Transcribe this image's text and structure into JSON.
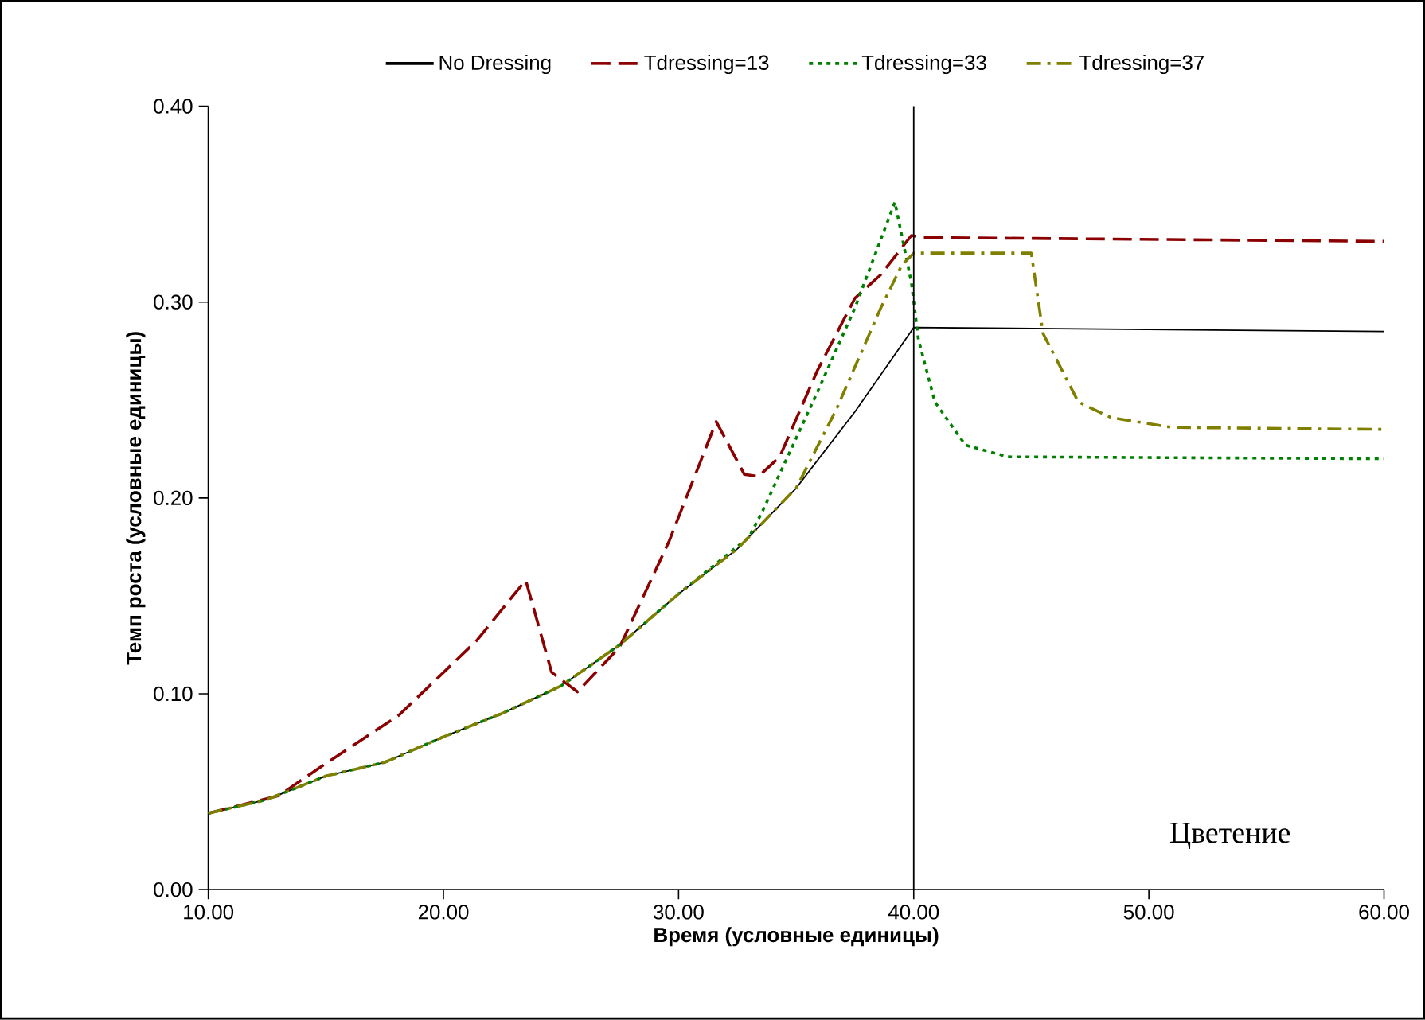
{
  "chart_data": {
    "type": "line",
    "xlabel": "Время (условные единицы)",
    "ylabel": "Темп роста (условные единицы)",
    "xlim": [
      10,
      60
    ],
    "ylim": [
      0,
      0.4
    ],
    "xticks": [
      {
        "value": 10,
        "label": "10.00"
      },
      {
        "value": 20,
        "label": "20.00"
      },
      {
        "value": 30,
        "label": "30.00"
      },
      {
        "value": 40,
        "label": "40.00"
      },
      {
        "value": 50,
        "label": "50.00"
      },
      {
        "value": 60,
        "label": "60.00"
      }
    ],
    "yticks": [
      {
        "value": 0,
        "label": "0.00"
      },
      {
        "value": 0.1,
        "label": "0.10"
      },
      {
        "value": 0.2,
        "label": "0.20"
      },
      {
        "value": 0.3,
        "label": "0.30"
      },
      {
        "value": 0.4,
        "label": "0.40"
      }
    ],
    "legend": "top",
    "grid": false,
    "marker": "none",
    "ref_lines": [
      {
        "axis": "x",
        "value": 40,
        "color": "#000000",
        "line_style": "solid"
      }
    ],
    "annotations": [
      "Цветение"
    ],
    "series": [
      {
        "name": "No Dressing",
        "color": "#000000",
        "line_style": "solid",
        "x": [
          10,
          12.5,
          15,
          17.5,
          20,
          22.5,
          25,
          27.5,
          30,
          32.5,
          35,
          37.5,
          40,
          60
        ],
        "values": [
          0.039,
          0.046,
          0.058,
          0.065,
          0.078,
          0.09,
          0.104,
          0.125,
          0.151,
          0.174,
          0.205,
          0.244,
          0.287,
          0.285
        ]
      },
      {
        "name": "Tdressing=13",
        "color": "#8b0000",
        "line_style": "dashed",
        "x": [
          10,
          13,
          14.7,
          18.1,
          21.4,
          23.5,
          24.6,
          25.7,
          27.5,
          29.6,
          31.6,
          32.8,
          33.4,
          34.3,
          35.9,
          37.5,
          38.6,
          39.9,
          40.4,
          60
        ],
        "values": [
          0.039,
          0.048,
          0.062,
          0.089,
          0.127,
          0.158,
          0.111,
          0.101,
          0.124,
          0.178,
          0.239,
          0.212,
          0.211,
          0.221,
          0.265,
          0.302,
          0.314,
          0.334,
          0.333,
          0.331
        ]
      },
      {
        "name": "Tdressing=33",
        "color": "#008000",
        "line_style": "dotted",
        "x": [
          10,
          12.5,
          15,
          17.5,
          20,
          22.5,
          25,
          27.5,
          30,
          33,
          33.6,
          35.9,
          37.5,
          39.2,
          39.9,
          40.2,
          40.9,
          42.2,
          44,
          60
        ],
        "values": [
          0.039,
          0.046,
          0.058,
          0.065,
          0.078,
          0.09,
          0.104,
          0.125,
          0.151,
          0.18,
          0.194,
          0.254,
          0.297,
          0.351,
          0.31,
          0.281,
          0.249,
          0.227,
          0.221,
          0.22
        ]
      },
      {
        "name": "Tdressing=37",
        "color": "#808000",
        "line_style": "dashdot",
        "x": [
          10,
          12.5,
          15,
          17.5,
          20,
          22.5,
          25,
          27.5,
          30,
          32.5,
          35,
          36.7,
          38.6,
          39.5,
          40,
          45,
          45.5,
          47,
          48.4,
          51,
          60
        ],
        "values": [
          0.039,
          0.046,
          0.058,
          0.065,
          0.078,
          0.09,
          0.104,
          0.125,
          0.151,
          0.174,
          0.205,
          0.245,
          0.297,
          0.319,
          0.325,
          0.325,
          0.284,
          0.249,
          0.241,
          0.236,
          0.235
        ]
      }
    ]
  }
}
